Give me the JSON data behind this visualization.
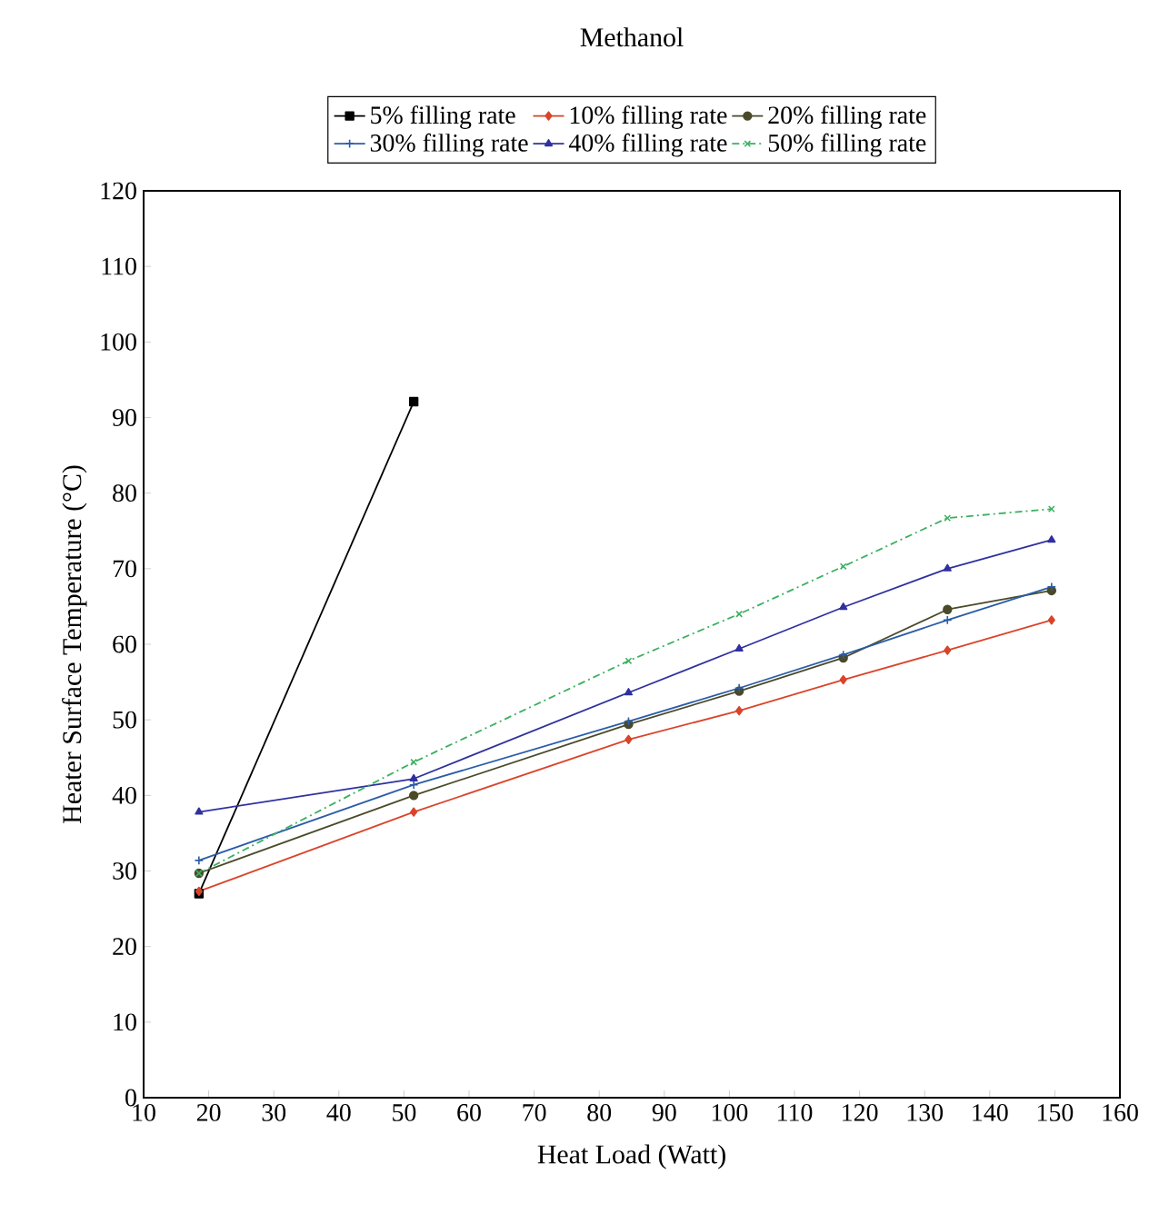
{
  "chart_data": {
    "type": "line",
    "title": "Methanol",
    "xlabel": "Heat Load (Watt)",
    "ylabel": "Heater Surface Temperature (°C)",
    "xlim": [
      10,
      160
    ],
    "xticks": [
      10,
      20,
      30,
      40,
      50,
      60,
      70,
      80,
      90,
      100,
      110,
      120,
      130,
      140,
      150,
      160
    ],
    "ylim": [
      0,
      120
    ],
    "yticks": [
      0,
      10,
      20,
      30,
      40,
      50,
      60,
      70,
      80,
      90,
      100,
      110,
      120
    ],
    "legend": "top",
    "series": [
      {
        "name": "5% filling rate",
        "color": "#000000",
        "marker": "square",
        "line_style": "solid",
        "x": [
          18.5,
          51.5
        ],
        "values": [
          27.0,
          92.1
        ]
      },
      {
        "name": "10% filling rate",
        "color": "#d9442a",
        "marker": "diamond",
        "line_style": "solid",
        "x": [
          18.5,
          51.5,
          84.5,
          101.5,
          117.5,
          133.5,
          149.5
        ],
        "values": [
          27.3,
          37.8,
          47.4,
          51.2,
          55.3,
          59.2,
          63.2
        ]
      },
      {
        "name": "20% filling rate",
        "color": "#4a4a2a",
        "marker": "circle",
        "line_style": "solid",
        "x": [
          18.5,
          51.5,
          84.5,
          101.5,
          117.5,
          133.5,
          149.5
        ],
        "values": [
          29.7,
          40.0,
          49.4,
          53.8,
          58.2,
          64.6,
          67.1
        ]
      },
      {
        "name": "30% filling rate",
        "color": "#2a5ca8",
        "marker": "plus",
        "line_style": "solid",
        "x": [
          18.5,
          51.5,
          84.5,
          101.5,
          117.5,
          133.5,
          149.5
        ],
        "values": [
          31.4,
          41.4,
          49.8,
          54.2,
          58.6,
          63.2,
          67.6
        ]
      },
      {
        "name": "40% filling rate",
        "color": "#3030a0",
        "marker": "triangle",
        "line_style": "solid",
        "x": [
          18.5,
          51.5,
          84.5,
          101.5,
          117.5,
          133.5,
          149.5
        ],
        "values": [
          37.8,
          42.2,
          53.6,
          59.4,
          64.9,
          70.0,
          73.8
        ]
      },
      {
        "name": "50% filling rate",
        "color": "#3cb060",
        "marker": "cross",
        "line_style": "dashdot",
        "x": [
          18.5,
          51.5,
          84.5,
          101.5,
          117.5,
          133.5,
          149.5
        ],
        "values": [
          29.7,
          44.4,
          57.8,
          64.0,
          70.3,
          76.7,
          77.9
        ]
      }
    ]
  }
}
